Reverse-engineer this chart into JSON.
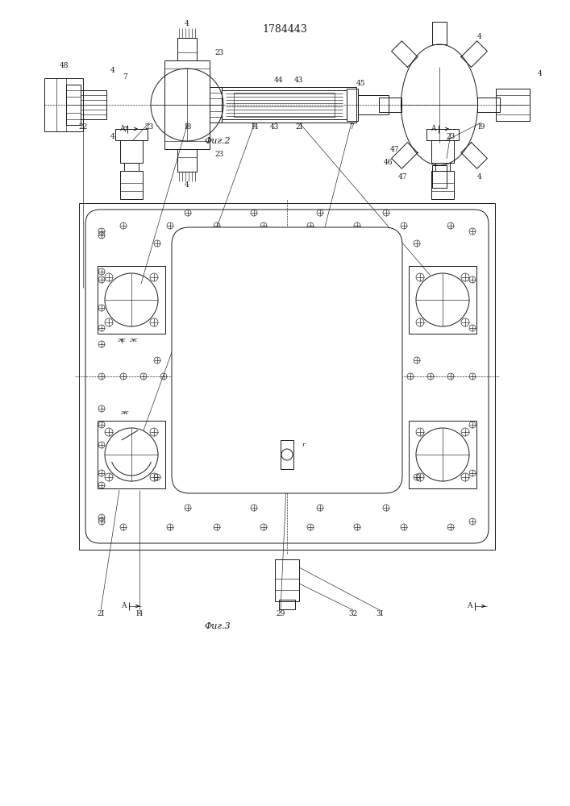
{
  "title": "1784443",
  "fig2_label": "Фиг.2",
  "fig3_label": "Фиг.3",
  "line_color": "#1a1a1a",
  "bg_color": "#ffffff",
  "lw": 0.7,
  "tlw": 0.45
}
